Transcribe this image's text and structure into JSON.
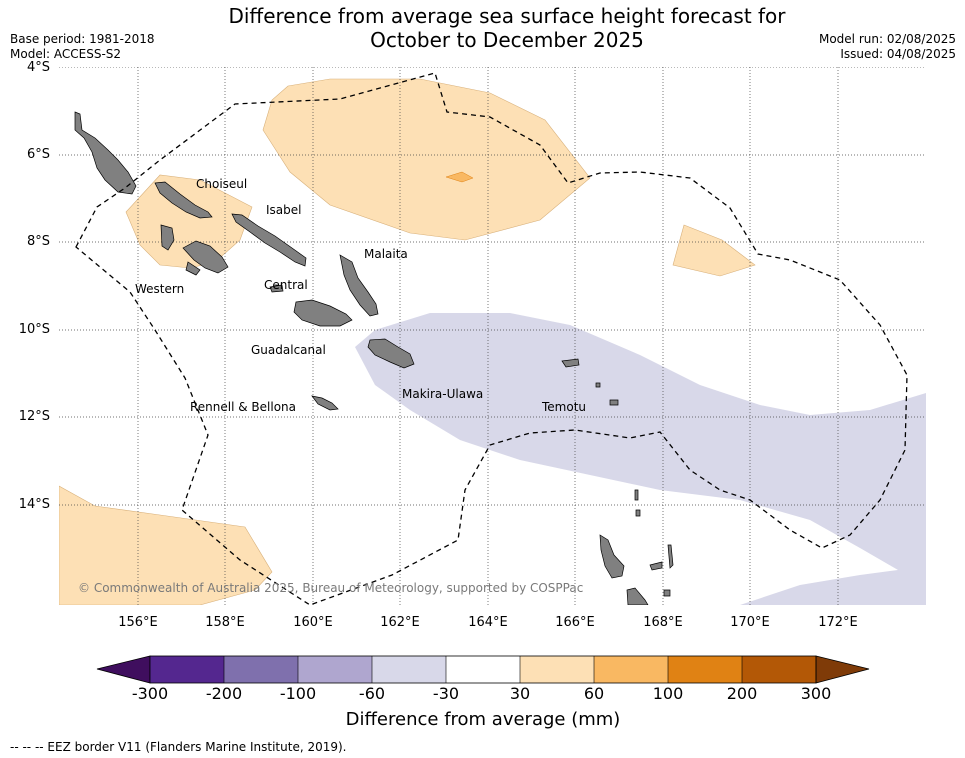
{
  "header": {
    "title_line1": "Difference from average sea surface height forecast for",
    "title_line2": "October to December 2025",
    "base_period": "Base period: 1981-2018",
    "model": "Model: ACCESS-S2",
    "model_run": "Model run: 02/08/2025",
    "issued": "Issued: 04/08/2025"
  },
  "map": {
    "lat_labels": [
      "4°S",
      "6°S",
      "8°S",
      "10°S",
      "12°S",
      "14°S"
    ],
    "lon_labels": [
      "156°E",
      "158°E",
      "160°E",
      "162°E",
      "164°E",
      "166°E",
      "168°E",
      "170°E",
      "172°E"
    ],
    "regions": [
      "Choiseul",
      "Isabel",
      "Malaita",
      "Western",
      "Central",
      "Guadalcanal",
      "Makira-Ulawa",
      "Rennell & Bellona",
      "Temotu"
    ],
    "copyright": "© Commonwealth of Australia 2025, Bureau of Meteorology, supported by COSPPac",
    "colors": {
      "land": "#808080",
      "positive_light": "#fde0b5",
      "positive_medium": "#f9b862",
      "negative_light": "#d8d8e9",
      "eez_line": "#000000"
    }
  },
  "colorbar": {
    "ticks": [
      "-300",
      "-200",
      "-100",
      "-60",
      "-30",
      "30",
      "60",
      "100",
      "200",
      "300"
    ],
    "segment_colors": [
      "#3f0e5e",
      "#54278f",
      "#7f70ad",
      "#afa6cf",
      "#d8d8e9",
      "#ffffff",
      "#fde0b5",
      "#f9b862",
      "#e08214",
      "#b35806",
      "#7f3b08"
    ],
    "title": "Difference from average (mm)"
  },
  "footer": {
    "legend": "--  --  -- EEZ border V11 (Flanders Marine Institute, 2019)."
  }
}
